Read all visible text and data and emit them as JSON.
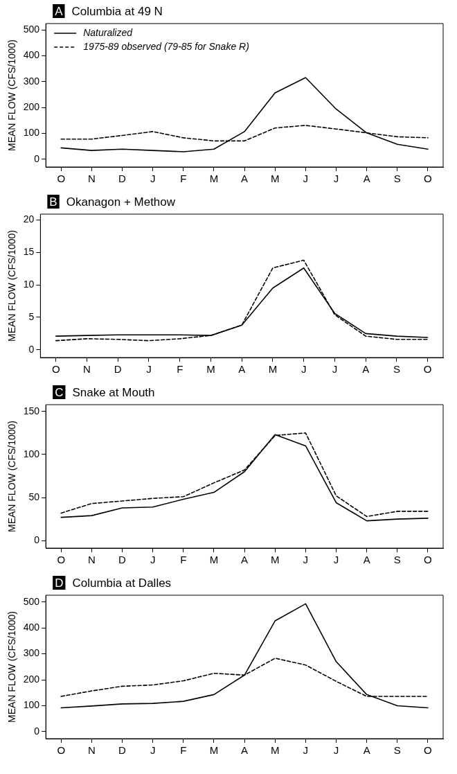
{
  "chart_data": [
    {
      "type": "line",
      "title": "A Columbia at 49 N",
      "ylabel": "MEAN FLOW (CFS/1000)",
      "categories": [
        "O",
        "N",
        "D",
        "J",
        "F",
        "M",
        "A",
        "M",
        "J",
        "J",
        "A",
        "S",
        "O"
      ],
      "ylim": [
        -30,
        525
      ],
      "yticks": [
        0,
        100,
        200,
        300,
        400,
        500
      ],
      "grid": false,
      "legend": "top left",
      "marker": "none",
      "series": [
        {
          "name": "Naturalized",
          "color": "#000000",
          "line_style": "solid",
          "values": [
            44,
            34,
            39,
            34,
            29,
            39,
            107,
            257,
            316,
            194,
            102,
            58,
            39
          ]
        },
        {
          "name": "1975-89 observed (79-85 for Snake R)",
          "color": "#000000",
          "line_style": "dashed",
          "values": [
            78,
            78,
            92,
            107,
            83,
            71,
            71,
            121,
            131,
            117,
            102,
            87,
            83
          ]
        }
      ]
    },
    {
      "type": "line",
      "title": "B Okanagon + Methow",
      "ylabel": "MEAN FLOW (CFS/1000)",
      "categories": [
        "O",
        "N",
        "D",
        "J",
        "F",
        "M",
        "A",
        "M",
        "J",
        "J",
        "A",
        "S",
        "O"
      ],
      "ylim": [
        -1.2,
        20.9
      ],
      "yticks": [
        0,
        5,
        10,
        15,
        20
      ],
      "grid": false,
      "legend": false,
      "marker": "none",
      "series": [
        {
          "color": "#000000",
          "line_style": "solid",
          "values": [
            2.1,
            2.2,
            2.3,
            2.3,
            2.3,
            2.2,
            3.8,
            9.5,
            12.6,
            5.6,
            2.5,
            2.1,
            1.9
          ]
        },
        {
          "color": "#000000",
          "line_style": "dashed",
          "values": [
            1.4,
            1.7,
            1.6,
            1.4,
            1.7,
            2.2,
            3.8,
            12.6,
            13.8,
            5.4,
            2.1,
            1.6,
            1.6
          ]
        }
      ]
    },
    {
      "type": "line",
      "title": "C Snake at Mouth",
      "ylabel": "MEAN FLOW (CFS/1000)",
      "categories": [
        "O",
        "N",
        "D",
        "J",
        "F",
        "M",
        "A",
        "M",
        "J",
        "J",
        "A",
        "S",
        "O"
      ],
      "ylim": [
        -8.7,
        157.8
      ],
      "yticks": [
        0,
        50,
        100,
        150
      ],
      "grid": false,
      "legend": false,
      "marker": "none",
      "series": [
        {
          "color": "#000000",
          "line_style": "solid",
          "values": [
            27,
            29,
            38,
            39,
            48,
            56,
            80,
            123,
            110,
            44,
            23,
            25,
            26
          ]
        },
        {
          "color": "#000000",
          "line_style": "dashed",
          "values": [
            32,
            43,
            46,
            49,
            51,
            67,
            82,
            122,
            125,
            52,
            28,
            34,
            34
          ]
        }
      ]
    },
    {
      "type": "line",
      "title": "D Columbia at Dalles",
      "ylabel": "MEAN FLOW (CFS/1000)",
      "categories": [
        "O",
        "N",
        "D",
        "J",
        "F",
        "M",
        "A",
        "M",
        "J",
        "J",
        "A",
        "S",
        "O"
      ],
      "ylim": [
        -27,
        526
      ],
      "yticks": [
        0,
        100,
        200,
        300,
        400,
        500
      ],
      "grid": false,
      "legend": false,
      "marker": "none",
      "series": [
        {
          "color": "#000000",
          "line_style": "solid",
          "values": [
            92,
            99,
            107,
            109,
            117,
            143,
            218,
            427,
            493,
            270,
            143,
            100,
            92
          ]
        },
        {
          "color": "#000000",
          "line_style": "dashed",
          "values": [
            136,
            157,
            175,
            180,
            196,
            225,
            218,
            283,
            257,
            194,
            136,
            136,
            136
          ]
        }
      ]
    }
  ]
}
